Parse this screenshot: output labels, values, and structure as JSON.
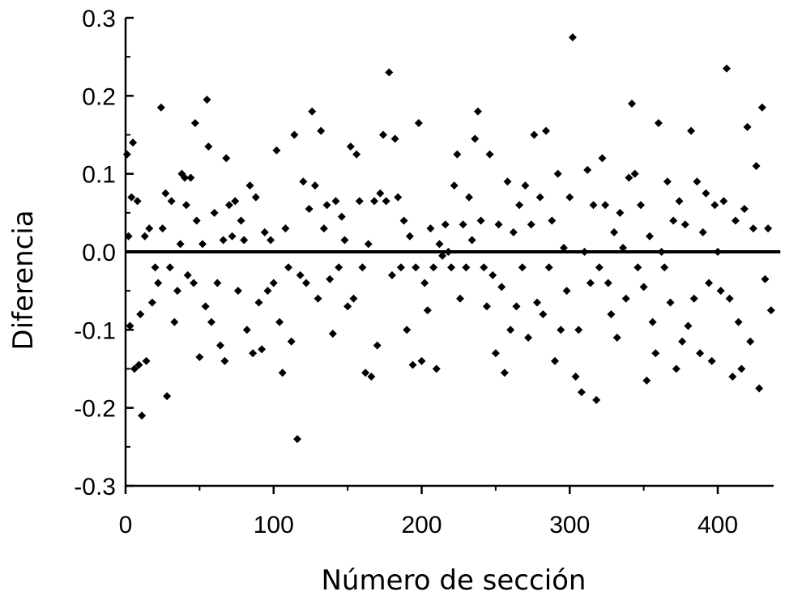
{
  "chart_data": {
    "type": "scatter",
    "title": "",
    "xlabel": "Número de sección",
    "ylabel": "Diferencia",
    "xlim": [
      0,
      445
    ],
    "ylim": [
      -0.3,
      0.3
    ],
    "xticks": [
      0,
      100,
      200,
      300,
      400
    ],
    "xtick_labels": [
      "0",
      "100",
      "200",
      "300",
      "400"
    ],
    "yticks": [
      -0.3,
      -0.2,
      -0.1,
      0.0,
      0.1,
      0.2,
      0.3
    ],
    "ytick_labels": [
      "-0.3",
      "-0.2",
      "-0.1",
      "0.0",
      "0.1",
      "0.2",
      "0.3"
    ],
    "grid": false,
    "legend": "none",
    "reference_line": {
      "y": 0.0
    },
    "marker": "diamond",
    "marker_color": "#000000",
    "series": [
      {
        "points": [
          [
            1,
            0.125
          ],
          [
            2,
            0.02
          ],
          [
            3,
            -0.095
          ],
          [
            4,
            0.07
          ],
          [
            5,
            0.14
          ],
          [
            6,
            -0.15
          ],
          [
            8,
            0.065
          ],
          [
            9,
            -0.145
          ],
          [
            10,
            -0.08
          ],
          [
            11,
            -0.21
          ],
          [
            13,
            0.02
          ],
          [
            14,
            -0.14
          ],
          [
            16,
            0.03
          ],
          [
            18,
            -0.065
          ],
          [
            20,
            -0.02
          ],
          [
            22,
            -0.04
          ],
          [
            24,
            0.185
          ],
          [
            25,
            0.03
          ],
          [
            27,
            0.075
          ],
          [
            28,
            -0.185
          ],
          [
            30,
            -0.02
          ],
          [
            31,
            0.065
          ],
          [
            33,
            -0.09
          ],
          [
            35,
            -0.05
          ],
          [
            37,
            0.01
          ],
          [
            38,
            0.1
          ],
          [
            40,
            0.095
          ],
          [
            41,
            0.06
          ],
          [
            42,
            -0.03
          ],
          [
            44,
            0.095
          ],
          [
            46,
            -0.04
          ],
          [
            47,
            0.165
          ],
          [
            48,
            0.04
          ],
          [
            50,
            -0.135
          ],
          [
            52,
            0.01
          ],
          [
            54,
            -0.07
          ],
          [
            55,
            0.195
          ],
          [
            56,
            0.135
          ],
          [
            58,
            -0.09
          ],
          [
            60,
            0.05
          ],
          [
            62,
            -0.04
          ],
          [
            64,
            -0.12
          ],
          [
            66,
            0.015
          ],
          [
            67,
            -0.14
          ],
          [
            68,
            0.12
          ],
          [
            70,
            0.06
          ],
          [
            72,
            0.02
          ],
          [
            74,
            0.065
          ],
          [
            76,
            -0.05
          ],
          [
            78,
            0.04
          ],
          [
            80,
            0.015
          ],
          [
            82,
            -0.1
          ],
          [
            84,
            0.085
          ],
          [
            86,
            -0.13
          ],
          [
            88,
            0.07
          ],
          [
            90,
            -0.065
          ],
          [
            92,
            -0.125
          ],
          [
            94,
            0.025
          ],
          [
            96,
            -0.05
          ],
          [
            98,
            0.015
          ],
          [
            100,
            -0.04
          ],
          [
            102,
            0.13
          ],
          [
            104,
            -0.09
          ],
          [
            106,
            -0.155
          ],
          [
            108,
            0.03
          ],
          [
            110,
            -0.02
          ],
          [
            112,
            -0.115
          ],
          [
            114,
            0.15
          ],
          [
            116,
            -0.24
          ],
          [
            118,
            -0.03
          ],
          [
            120,
            0.09
          ],
          [
            122,
            -0.04
          ],
          [
            124,
            0.055
          ],
          [
            126,
            0.18
          ],
          [
            128,
            0.085
          ],
          [
            130,
            -0.06
          ],
          [
            132,
            0.155
          ],
          [
            134,
            0.03
          ],
          [
            136,
            0.06
          ],
          [
            138,
            -0.035
          ],
          [
            140,
            -0.105
          ],
          [
            142,
            0.065
          ],
          [
            144,
            -0.02
          ],
          [
            146,
            0.045
          ],
          [
            148,
            0.015
          ],
          [
            150,
            -0.07
          ],
          [
            152,
            0.135
          ],
          [
            154,
            -0.06
          ],
          [
            156,
            0.125
          ],
          [
            158,
            0.065
          ],
          [
            160,
            -0.02
          ],
          [
            162,
            -0.155
          ],
          [
            164,
            0.01
          ],
          [
            166,
            -0.16
          ],
          [
            168,
            0.065
          ],
          [
            170,
            -0.12
          ],
          [
            172,
            0.075
          ],
          [
            174,
            0.15
          ],
          [
            176,
            0.065
          ],
          [
            178,
            0.23
          ],
          [
            180,
            -0.03
          ],
          [
            182,
            0.145
          ],
          [
            184,
            0.07
          ],
          [
            186,
            -0.02
          ],
          [
            188,
            0.04
          ],
          [
            190,
            -0.1
          ],
          [
            192,
            0.02
          ],
          [
            194,
            -0.145
          ],
          [
            196,
            -0.02
          ],
          [
            198,
            0.165
          ],
          [
            200,
            -0.14
          ],
          [
            202,
            -0.04
          ],
          [
            204,
            -0.075
          ],
          [
            206,
            0.03
          ],
          [
            208,
            -0.02
          ],
          [
            210,
            -0.15
          ],
          [
            212,
            0.01
          ],
          [
            214,
            -0.005
          ],
          [
            216,
            0.035
          ],
          [
            218,
            0.0
          ],
          [
            220,
            -0.02
          ],
          [
            222,
            0.085
          ],
          [
            224,
            0.125
          ],
          [
            226,
            -0.06
          ],
          [
            228,
            0.035
          ],
          [
            230,
            -0.02
          ],
          [
            232,
            0.07
          ],
          [
            234,
            0.015
          ],
          [
            236,
            0.145
          ],
          [
            238,
            0.18
          ],
          [
            240,
            0.04
          ],
          [
            242,
            -0.02
          ],
          [
            244,
            -0.07
          ],
          [
            246,
            0.125
          ],
          [
            248,
            -0.03
          ],
          [
            250,
            -0.13
          ],
          [
            252,
            0.035
          ],
          [
            254,
            -0.045
          ],
          [
            256,
            -0.155
          ],
          [
            258,
            0.09
          ],
          [
            260,
            -0.1
          ],
          [
            262,
            0.025
          ],
          [
            264,
            -0.07
          ],
          [
            266,
            0.06
          ],
          [
            268,
            -0.02
          ],
          [
            270,
            0.085
          ],
          [
            272,
            -0.11
          ],
          [
            274,
            0.035
          ],
          [
            276,
            0.15
          ],
          [
            278,
            -0.065
          ],
          [
            280,
            0.07
          ],
          [
            282,
            -0.08
          ],
          [
            284,
            0.155
          ],
          [
            286,
            -0.02
          ],
          [
            288,
            0.04
          ],
          [
            290,
            -0.14
          ],
          [
            292,
            0.1
          ],
          [
            294,
            -0.1
          ],
          [
            296,
            0.005
          ],
          [
            298,
            -0.05
          ],
          [
            300,
            0.07
          ],
          [
            302,
            0.275
          ],
          [
            304,
            -0.16
          ],
          [
            306,
            -0.1
          ],
          [
            308,
            -0.18
          ],
          [
            310,
            0.0
          ],
          [
            312,
            0.105
          ],
          [
            314,
            -0.04
          ],
          [
            316,
            0.06
          ],
          [
            318,
            -0.19
          ],
          [
            320,
            -0.02
          ],
          [
            322,
            0.12
          ],
          [
            324,
            0.06
          ],
          [
            326,
            -0.04
          ],
          [
            328,
            -0.08
          ],
          [
            330,
            0.025
          ],
          [
            332,
            -0.11
          ],
          [
            334,
            0.05
          ],
          [
            336,
            0.005
          ],
          [
            338,
            -0.06
          ],
          [
            340,
            0.095
          ],
          [
            342,
            0.19
          ],
          [
            344,
            0.1
          ],
          [
            346,
            -0.02
          ],
          [
            348,
            0.06
          ],
          [
            350,
            -0.045
          ],
          [
            352,
            -0.165
          ],
          [
            354,
            0.02
          ],
          [
            356,
            -0.09
          ],
          [
            358,
            -0.13
          ],
          [
            360,
            0.165
          ],
          [
            362,
            0.0
          ],
          [
            364,
            -0.02
          ],
          [
            366,
            0.09
          ],
          [
            368,
            -0.065
          ],
          [
            370,
            0.04
          ],
          [
            372,
            -0.15
          ],
          [
            374,
            0.065
          ],
          [
            376,
            -0.115
          ],
          [
            378,
            0.035
          ],
          [
            380,
            -0.095
          ],
          [
            382,
            0.155
          ],
          [
            384,
            -0.06
          ],
          [
            386,
            0.09
          ],
          [
            388,
            -0.13
          ],
          [
            390,
            0.025
          ],
          [
            392,
            0.075
          ],
          [
            394,
            -0.04
          ],
          [
            396,
            -0.14
          ],
          [
            398,
            0.06
          ],
          [
            400,
            0.0
          ],
          [
            402,
            -0.05
          ],
          [
            404,
            0.065
          ],
          [
            406,
            0.235
          ],
          [
            408,
            -0.06
          ],
          [
            410,
            -0.16
          ],
          [
            412,
            0.04
          ],
          [
            414,
            -0.09
          ],
          [
            416,
            -0.15
          ],
          [
            418,
            0.055
          ],
          [
            420,
            0.16
          ],
          [
            422,
            -0.115
          ],
          [
            424,
            0.03
          ],
          [
            426,
            0.11
          ],
          [
            428,
            -0.175
          ],
          [
            430,
            0.185
          ],
          [
            432,
            -0.035
          ],
          [
            434,
            0.03
          ],
          [
            436,
            -0.075
          ]
        ]
      }
    ]
  }
}
